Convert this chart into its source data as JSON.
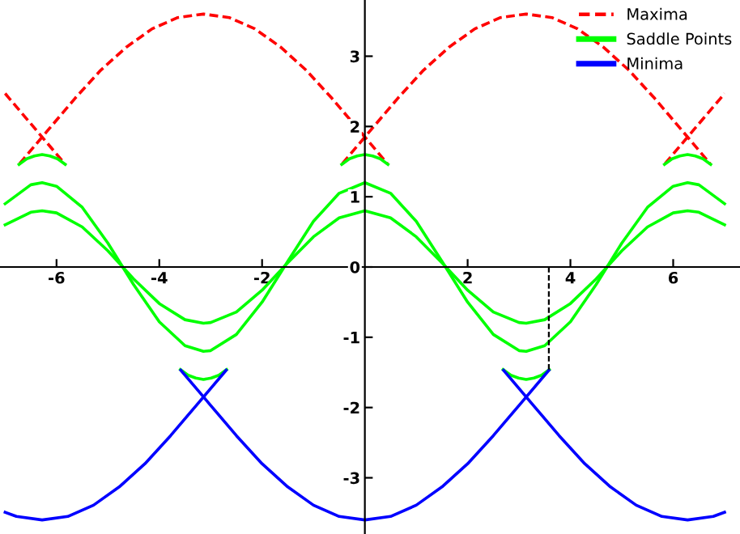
{
  "chart_data": {
    "type": "line",
    "xlim": [
      -7.1,
      7.3
    ],
    "ylim": [
      -3.8,
      3.8
    ],
    "xticks": [
      -6,
      -4,
      -2,
      2,
      4,
      6
    ],
    "yticks": [
      -3,
      -2,
      -1,
      0,
      1,
      2,
      3
    ],
    "grid": false,
    "legend": "top right",
    "marker": "none",
    "series": [
      {
        "name": "Maxima",
        "color": "#ff0000",
        "line_style": "dashed",
        "x": [
          -7.0,
          -6.92,
          -6.42,
          -5.84
        ],
        "values": [
          2.47,
          2.4,
          1.97,
          1.47
        ]
      },
      {
        "color": "#ff0000",
        "line_style": "dashed",
        "x": [
          -6.72,
          -6.14,
          -5.64,
          -5.14,
          -4.64,
          -4.14,
          -3.64,
          -3.14,
          -2.64,
          -2.14,
          -1.64,
          -1.14,
          -0.64,
          -0.14,
          0.44
        ],
        "values": [
          1.47,
          1.97,
          2.4,
          2.8,
          3.13,
          3.39,
          3.55,
          3.6,
          3.55,
          3.39,
          3.13,
          2.8,
          2.4,
          1.97,
          1.47
        ]
      },
      {
        "color": "#ff0000",
        "line_style": "dashed",
        "x": [
          -0.44,
          0.14,
          0.64,
          1.14,
          1.64,
          2.14,
          2.64,
          3.14,
          3.64,
          4.14,
          4.64,
          5.14,
          5.64,
          6.14,
          6.72
        ],
        "values": [
          1.47,
          1.97,
          2.4,
          2.8,
          3.13,
          3.39,
          3.55,
          3.6,
          3.55,
          3.39,
          3.13,
          2.8,
          2.4,
          1.97,
          1.47
        ]
      },
      {
        "color": "#ff0000",
        "line_style": "dashed",
        "x": [
          5.84,
          6.42,
          6.92,
          7.0
        ],
        "values": [
          1.47,
          1.97,
          2.4,
          2.47
        ]
      },
      {
        "name": "Saddle Points",
        "color": "#00ff00",
        "line_style": "solid",
        "x": [
          -7,
          -6.5,
          -6.28,
          -6,
          -5.5,
          -5,
          -4.5,
          -4,
          -3.5,
          -3.14,
          -3,
          -2.5,
          -2,
          -1.5,
          -1,
          -0.5,
          0,
          0.5,
          1,
          1.5,
          2,
          2.5,
          3,
          3.14,
          3.5,
          4,
          4.5,
          5,
          5.5,
          6,
          6.28,
          6.5,
          7
        ],
        "values": [
          0.9,
          1.17,
          1.2,
          1.15,
          0.85,
          0.34,
          -0.25,
          -0.78,
          -1.12,
          -1.2,
          -1.19,
          -0.96,
          -0.5,
          0.08,
          0.65,
          1.05,
          1.2,
          1.05,
          0.65,
          0.08,
          -0.5,
          -0.96,
          -1.19,
          -1.2,
          -1.12,
          -0.78,
          -0.25,
          0.34,
          0.85,
          1.15,
          1.2,
          1.17,
          0.9
        ]
      },
      {
        "color": "#00ff00",
        "line_style": "solid",
        "x": [
          -7,
          -6.5,
          -6.28,
          -6,
          -5.5,
          -5,
          -4.5,
          -4,
          -3.5,
          -3.14,
          -3,
          -2.5,
          -2,
          -1.5,
          -1,
          -0.5,
          0,
          0.5,
          1,
          1.5,
          2,
          2.5,
          3,
          3.14,
          3.5,
          4,
          4.5,
          5,
          5.5,
          6,
          6.28,
          6.5,
          7
        ],
        "values": [
          0.6,
          0.78,
          0.8,
          0.77,
          0.57,
          0.23,
          -0.17,
          -0.52,
          -0.75,
          -0.8,
          -0.79,
          -0.64,
          -0.33,
          0.06,
          0.43,
          0.7,
          0.8,
          0.7,
          0.43,
          0.06,
          -0.33,
          -0.64,
          -0.79,
          -0.8,
          -0.75,
          -0.52,
          -0.17,
          0.23,
          0.57,
          0.77,
          0.8,
          0.78,
          0.6
        ]
      },
      {
        "color": "#00ff00",
        "line_style": "solid",
        "x": [
          -6.73,
          -6.58,
          -6.43,
          -6.28,
          -6.13,
          -5.98,
          -5.83
        ],
        "values": [
          1.46,
          1.54,
          1.58,
          1.6,
          1.58,
          1.54,
          1.46
        ]
      },
      {
        "color": "#00ff00",
        "line_style": "solid",
        "x": [
          -0.45,
          -0.3,
          -0.15,
          0,
          0.15,
          0.3,
          0.45
        ],
        "values": [
          1.46,
          1.54,
          1.58,
          1.6,
          1.58,
          1.54,
          1.46
        ]
      },
      {
        "color": "#00ff00",
        "line_style": "solid",
        "x": [
          5.83,
          5.98,
          6.13,
          6.28,
          6.43,
          6.58,
          6.73
        ],
        "values": [
          1.46,
          1.54,
          1.58,
          1.6,
          1.58,
          1.54,
          1.46
        ]
      },
      {
        "color": "#00ff00",
        "line_style": "solid",
        "x": [
          -3.59,
          -3.44,
          -3.29,
          -3.14,
          -2.99,
          -2.84,
          -2.69
        ],
        "values": [
          -1.46,
          -1.54,
          -1.58,
          -1.6,
          -1.58,
          -1.54,
          -1.46
        ]
      },
      {
        "color": "#00ff00",
        "line_style": "solid",
        "x": [
          2.69,
          2.84,
          2.99,
          3.14,
          3.29,
          3.44,
          3.59
        ],
        "values": [
          -1.46,
          -1.54,
          -1.58,
          -1.6,
          -1.58,
          -1.54,
          -1.46
        ]
      },
      {
        "name": "Minima",
        "color": "#0000ff",
        "line_style": "solid",
        "x": [
          -7.0,
          -6.78,
          -6.28,
          -5.78,
          -5.28,
          -4.78,
          -4.28,
          -3.78,
          -3.28,
          -2.7
        ],
        "values": [
          -3.49,
          -3.55,
          -3.6,
          -3.55,
          -3.39,
          -3.13,
          -2.8,
          -2.4,
          -1.97,
          -1.47
        ]
      },
      {
        "color": "#0000ff",
        "line_style": "solid",
        "x": [
          -3.58,
          -3,
          -2.5,
          -2,
          -1.5,
          -1,
          -0.5,
          0,
          0.5,
          1,
          1.5,
          2,
          2.5,
          3,
          3.58
        ],
        "values": [
          -1.47,
          -1.97,
          -2.4,
          -2.8,
          -3.13,
          -3.39,
          -3.55,
          -3.6,
          -3.55,
          -3.39,
          -3.13,
          -2.8,
          -2.4,
          -1.97,
          -1.47
        ]
      },
      {
        "color": "#0000ff",
        "line_style": "solid",
        "x": [
          2.7,
          3.28,
          3.78,
          4.28,
          4.78,
          5.28,
          5.78,
          6.28,
          6.78,
          7.0
        ],
        "values": [
          -1.47,
          -1.97,
          -2.4,
          -2.8,
          -3.13,
          -3.39,
          -3.55,
          -3.6,
          -3.55,
          -3.49
        ]
      },
      {
        "color": "#000000",
        "line_style": "dashed",
        "x": [
          3.58,
          3.58
        ],
        "values": [
          0,
          -1.46
        ]
      }
    ]
  }
}
